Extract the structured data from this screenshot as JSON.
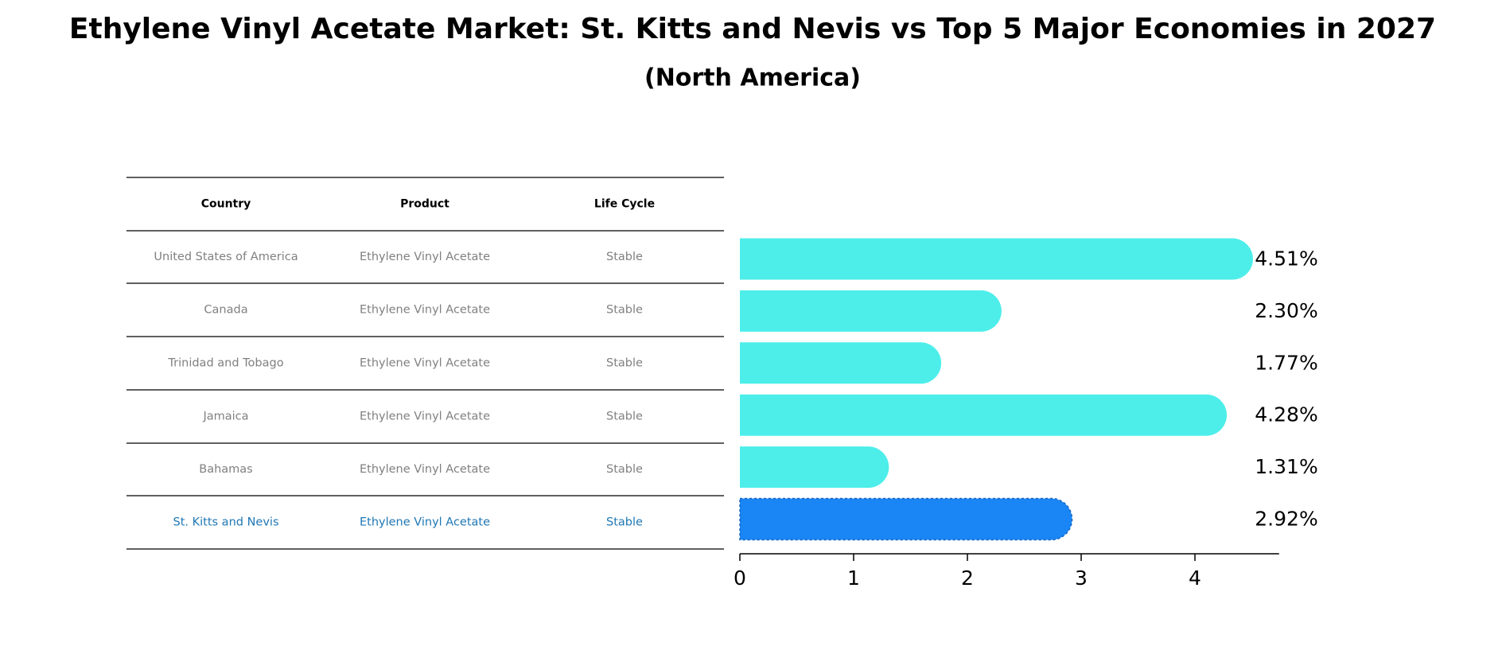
{
  "chart_data": {
    "type": "bar",
    "orientation": "horizontal",
    "title": "Ethylene Vinyl Acetate Market: St. Kitts and Nevis vs Top 5 Major Economies in 2027",
    "subtitle": "(North America)",
    "table": {
      "columns": [
        "Country",
        "Product",
        "Life Cycle"
      ],
      "rows": [
        [
          "United States of America",
          "Ethylene Vinyl Acetate",
          "Stable"
        ],
        [
          "Canada",
          "Ethylene Vinyl Acetate",
          "Stable"
        ],
        [
          "Trinidad and Tobago",
          "Ethylene Vinyl Acetate",
          "Stable"
        ],
        [
          "Jamaica",
          "Ethylene Vinyl Acetate",
          "Stable"
        ],
        [
          "Bahamas",
          "Ethylene Vinyl Acetate",
          "Stable"
        ],
        [
          "St. Kitts and Nevis",
          "Ethylene Vinyl Acetate",
          "Stable"
        ]
      ]
    },
    "categories": [
      "United States of America",
      "Canada",
      "Trinidad and Tobago",
      "Jamaica",
      "Bahamas",
      "St. Kitts and Nevis"
    ],
    "values": [
      4.51,
      2.3,
      1.77,
      4.28,
      1.31,
      2.92
    ],
    "value_labels": [
      "4.51%",
      "2.30%",
      "1.77%",
      "4.28%",
      "1.31%",
      "2.92%"
    ],
    "highlight_index": 5,
    "xlim": [
      0,
      4.74
    ],
    "xticks": [
      "0",
      "1",
      "2",
      "3",
      "4"
    ],
    "colors": {
      "bar": "#4DEEEA",
      "highlight": "#1A85F5",
      "highlight_text": "#1F77B4",
      "muted_text": "#808080",
      "title": "#000000"
    }
  }
}
